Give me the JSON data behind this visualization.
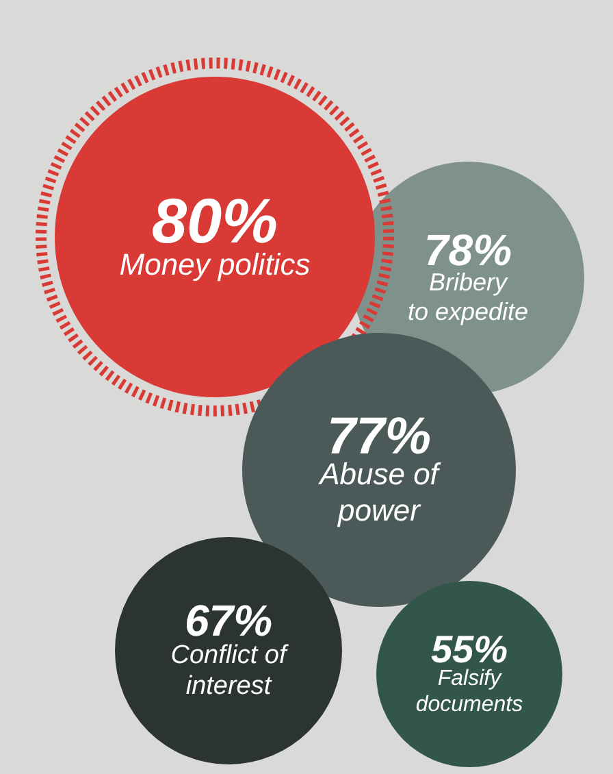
{
  "chart_data": {
    "type": "other",
    "categories": [
      "Money politics",
      "Bribery to expedite",
      "Abuse of power",
      "Conflict of interest",
      "Falsify documents"
    ],
    "values": [
      80,
      78,
      77,
      67,
      55
    ],
    "value_labels": [
      "80%",
      "78%",
      "77%",
      "67%",
      "55%"
    ],
    "colors": [
      "#d93a35",
      "#7e918b",
      "#4b5a58",
      "#2b3431",
      "#33564a"
    ]
  }
}
